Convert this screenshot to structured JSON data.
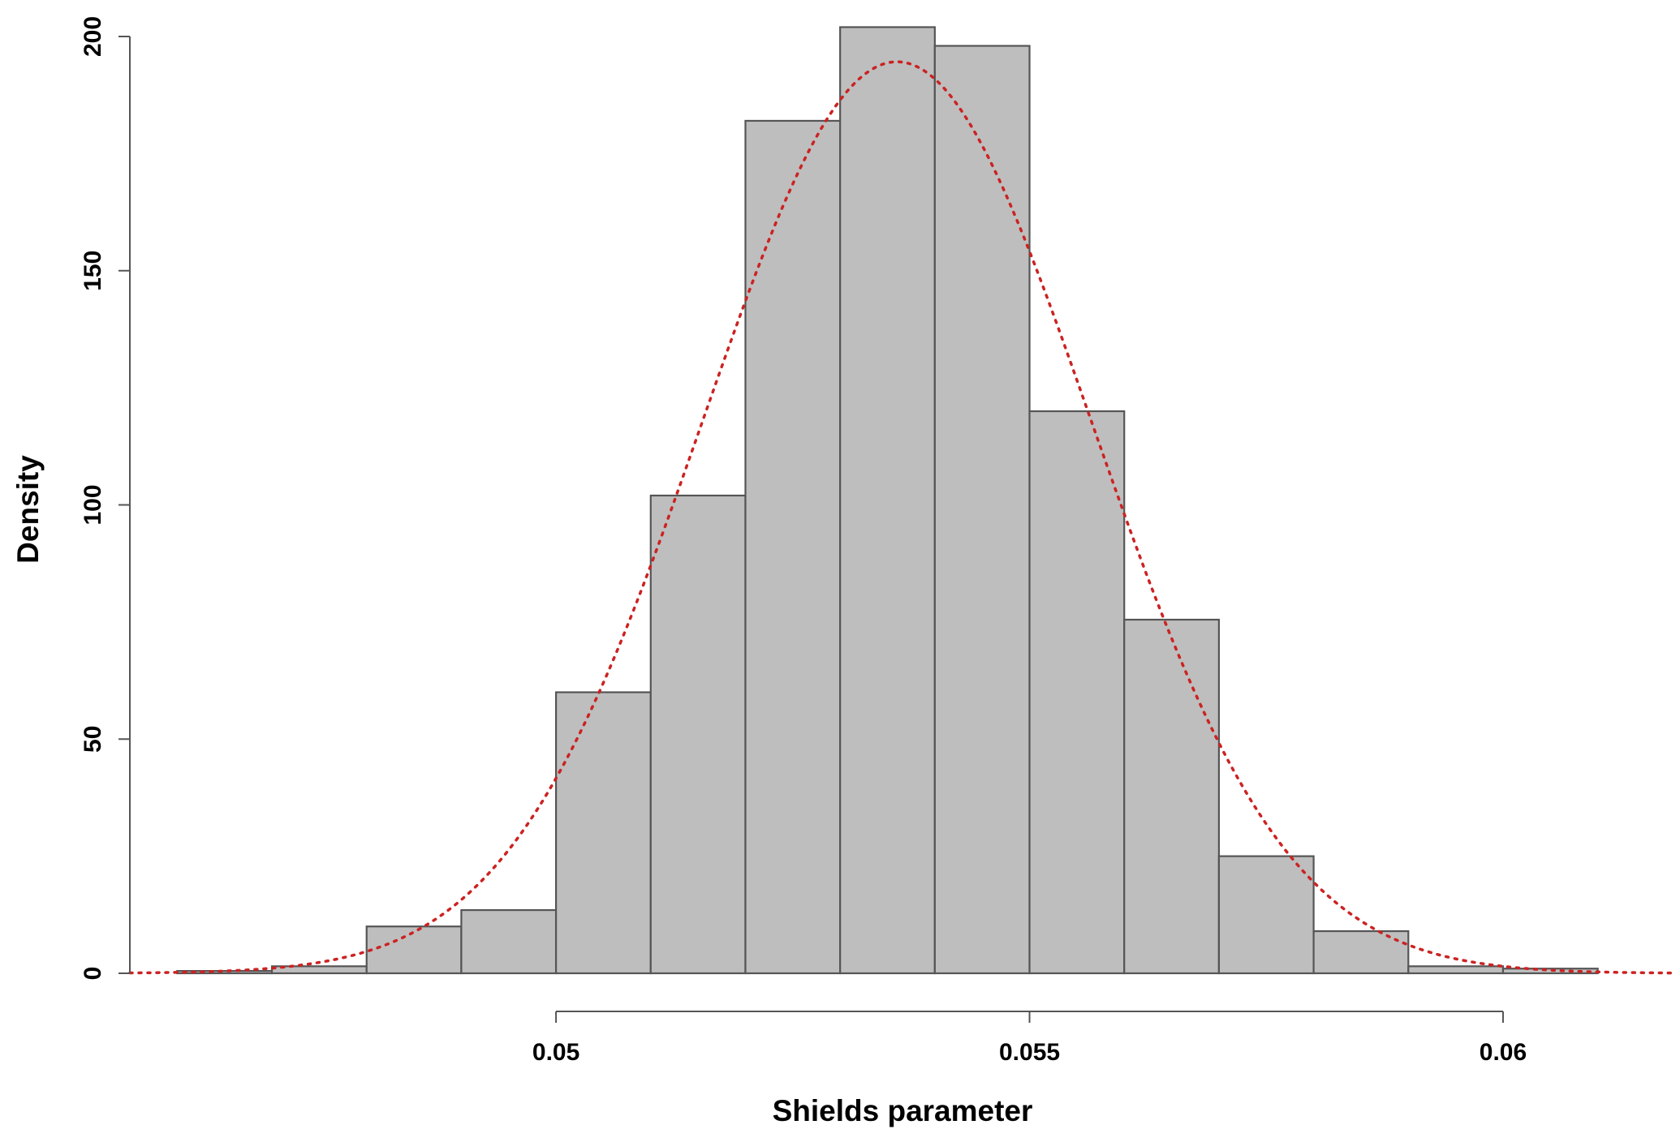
{
  "chart_data": {
    "type": "bar",
    "subtype": "histogram-with-density-curve",
    "title": "",
    "xlabel": "Shields parameter",
    "ylabel": "Density",
    "bins": [
      {
        "x0": 0.046,
        "x1": 0.047,
        "value": 0.5
      },
      {
        "x0": 0.047,
        "x1": 0.048,
        "value": 1.5
      },
      {
        "x0": 0.048,
        "x1": 0.049,
        "value": 10
      },
      {
        "x0": 0.049,
        "x1": 0.05,
        "value": 13.5
      },
      {
        "x0": 0.05,
        "x1": 0.051,
        "value": 60
      },
      {
        "x0": 0.051,
        "x1": 0.052,
        "value": 102
      },
      {
        "x0": 0.052,
        "x1": 0.053,
        "value": 182
      },
      {
        "x0": 0.053,
        "x1": 0.054,
        "value": 202
      },
      {
        "x0": 0.054,
        "x1": 0.055,
        "value": 198
      },
      {
        "x0": 0.055,
        "x1": 0.056,
        "value": 120
      },
      {
        "x0": 0.056,
        "x1": 0.057,
        "value": 75.5
      },
      {
        "x0": 0.057,
        "x1": 0.058,
        "value": 25
      },
      {
        "x0": 0.058,
        "x1": 0.059,
        "value": 9
      },
      {
        "x0": 0.059,
        "x1": 0.06,
        "value": 1.5
      },
      {
        "x0": 0.06,
        "x1": 0.061,
        "value": 1
      }
    ],
    "density_curve": {
      "type": "normal",
      "mean": 0.0536,
      "sd": 0.00205,
      "style": "dotted",
      "color": "#cc2222"
    },
    "x_ticks": [
      {
        "value": 0.05,
        "label": "0.05"
      },
      {
        "value": 0.055,
        "label": "0.055"
      },
      {
        "value": 0.06,
        "label": "0.06"
      }
    ],
    "y_ticks": [
      {
        "value": 0,
        "label": "0"
      },
      {
        "value": 50,
        "label": "50"
      },
      {
        "value": 100,
        "label": "100"
      },
      {
        "value": 150,
        "label": "150"
      },
      {
        "value": 200,
        "label": "200"
      }
    ],
    "xlim": [
      0.0455,
      0.0618
    ],
    "ylim": [
      0,
      200
    ],
    "grid": false,
    "bar_fill": "#bebebe",
    "bar_stroke": "#555555"
  }
}
